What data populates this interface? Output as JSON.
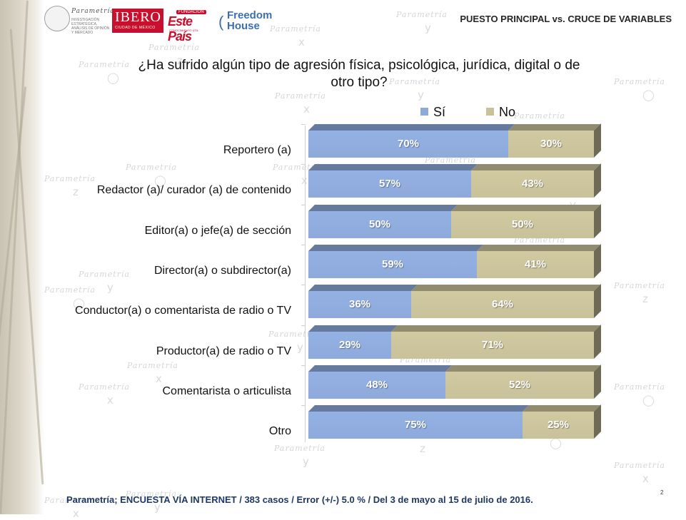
{
  "header": {
    "slide_title": "PUESTO PRINCIPAL vs. CRUCE DE VARIABLES",
    "logos": [
      {
        "name": "Parametría",
        "tagline": "INVESTIGACIÓN ESTRATÉGICA, ANÁLISIS DE OPINIÓN Y MERCADO"
      },
      {
        "name": "IBERO",
        "tagline": "CIUDAD DE MÉXICO"
      },
      {
        "name": "Este País",
        "badge": "FUNDACIÓN",
        "tagline": "CONOCIMIENTO ÚTIL"
      },
      {
        "name": "Freedom House"
      }
    ]
  },
  "watermark_text": "Parametría",
  "chart_data": {
    "type": "bar",
    "orientation": "horizontal",
    "stacked": true,
    "percent_stacked": true,
    "style": "3d",
    "title": "¿Ha sufrido algún tipo de agresión física, psicológica, jurídica, digital o de otro tipo?",
    "categories": [
      "Reportero (a)",
      "Redactor (a)/ curador (a) de contenido",
      "Editor(a) o jefe(a) de sección",
      "Director(a) o subdirector(a)",
      "Conductor(a) o comentarista de radio o TV",
      "Productor(a) de radio o TV",
      "Comentarista o articulista",
      "Otro"
    ],
    "series": [
      {
        "name": "Sí",
        "color": "#8eaadb",
        "values": [
          70,
          57,
          50,
          59,
          36,
          29,
          48,
          75
        ]
      },
      {
        "name": "No",
        "color": "#c9c19a",
        "values": [
          30,
          43,
          50,
          41,
          64,
          71,
          52,
          25
        ]
      }
    ],
    "value_format": "{v}%",
    "xlim": [
      0,
      100
    ],
    "legend_position": "top",
    "grid": false
  },
  "footer": {
    "source": "Parametría; ENCUESTA VÍA INTERNET /  383 casos / Error (+/-) 5.0 % / Del 3 de mayo al 15 de julio de 2016.",
    "page_number": "2"
  }
}
